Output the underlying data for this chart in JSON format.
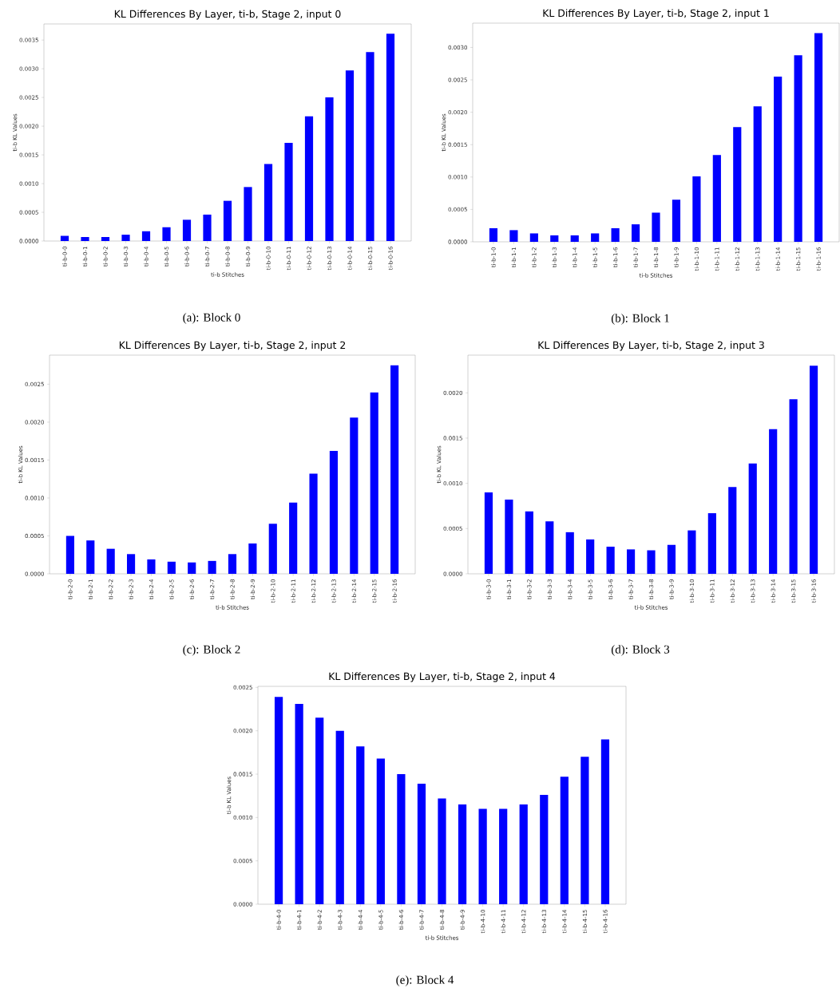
{
  "chart_data": [
    {
      "type": "bar",
      "title": "KL Differences By Layer, ti-b, Stage 2, input 0",
      "xlabel": "ti-b Stitches",
      "ylabel": "ti-b KL Values",
      "color": "#0000ff",
      "categories": [
        "ti-b-0-0",
        "ti-b-0-1",
        "ti-b-0-2",
        "ti-b-0-3",
        "ti-b-0-4",
        "ti-b-0-5",
        "ti-b-0-6",
        "ti-b-0-7",
        "ti-b-0-8",
        "ti-b-0-9",
        "ti-b-0-10",
        "ti-b-0-11",
        "ti-b-0-12",
        "ti-b-0-13",
        "ti-b-0-14",
        "ti-b-0-15",
        "ti-b-0-16"
      ],
      "values": [
        9e-05,
        7e-05,
        7e-05,
        0.00011,
        0.00017,
        0.00024,
        0.00037,
        0.00046,
        0.0007,
        0.00094,
        0.00134,
        0.00171,
        0.00217,
        0.0025,
        0.00297,
        0.00329,
        0.00361
      ],
      "ylim": [
        0,
        0.00378
      ],
      "yticks": [
        {
          "value": 0,
          "label": "0.0000"
        },
        {
          "value": 0.0005,
          "label": "0.0005"
        },
        {
          "value": 0.001,
          "label": "0.0010"
        },
        {
          "value": 0.0015,
          "label": "0.0015"
        },
        {
          "value": 0.002,
          "label": "0.0020"
        },
        {
          "value": 0.0025,
          "label": "0.0025"
        },
        {
          "value": 0.003,
          "label": "0.0030"
        },
        {
          "value": 0.0035,
          "label": "0.0035"
        }
      ],
      "annotations": [
        "(a): Block 0"
      ]
    },
    {
      "type": "bar",
      "title": "KL Differences By Layer, ti-b, Stage 2, input 1",
      "xlabel": "ti-b Stitches",
      "ylabel": "ti-b KL Values",
      "color": "#0000ff",
      "categories": [
        "ti-b-1-0",
        "ti-b-1-1",
        "ti-b-1-2",
        "ti-b-1-3",
        "ti-b-1-4",
        "ti-b-1-5",
        "ti-b-1-6",
        "ti-b-1-7",
        "ti-b-1-8",
        "ti-b-1-9",
        "ti-b-1-10",
        "ti-b-1-11",
        "ti-b-1-12",
        "ti-b-1-13",
        "ti-b-1-14",
        "ti-b-1-15",
        "ti-b-1-16"
      ],
      "values": [
        0.00021,
        0.00018,
        0.00013,
        0.0001,
        0.0001,
        0.00013,
        0.00021,
        0.00027,
        0.00045,
        0.00065,
        0.00101,
        0.00134,
        0.00177,
        0.00209,
        0.00255,
        0.00288,
        0.00322
      ],
      "ylim": [
        0,
        0.003375
      ],
      "yticks": [
        {
          "value": 0,
          "label": "0.0000"
        },
        {
          "value": 0.0005,
          "label": "0.0005"
        },
        {
          "value": 0.001,
          "label": "0.0010"
        },
        {
          "value": 0.0015,
          "label": "0.0015"
        },
        {
          "value": 0.002,
          "label": "0.0020"
        },
        {
          "value": 0.0025,
          "label": "0.0025"
        },
        {
          "value": 0.003,
          "label": "0.0030"
        }
      ],
      "annotations": [
        "(b): Block 1"
      ]
    },
    {
      "type": "bar",
      "title": "KL Differences By Layer, ti-b, Stage 2, input 2",
      "xlabel": "ti-b Stitches",
      "ylabel": "ti-b KL Values",
      "color": "#0000ff",
      "categories": [
        "ti-b-2-0",
        "ti-b-2-1",
        "ti-b-2-2",
        "ti-b-2-3",
        "ti-b-2-4",
        "ti-b-2-5",
        "ti-b-2-6",
        "ti-b-2-7",
        "ti-b-2-8",
        "ti-b-2-9",
        "ti-b-2-10",
        "ti-b-2-11",
        "ti-b-2-12",
        "ti-b-2-13",
        "ti-b-2-14",
        "ti-b-2-15",
        "ti-b-2-16"
      ],
      "values": [
        0.0005,
        0.00044,
        0.00033,
        0.00026,
        0.00019,
        0.00016,
        0.00015,
        0.00017,
        0.00026,
        0.0004,
        0.00066,
        0.00094,
        0.00132,
        0.00162,
        0.00206,
        0.00239,
        0.00275
      ],
      "ylim": [
        0,
        0.002883
      ],
      "yticks": [
        {
          "value": 0,
          "label": "0.0000"
        },
        {
          "value": 0.0005,
          "label": "0.0005"
        },
        {
          "value": 0.001,
          "label": "0.0010"
        },
        {
          "value": 0.0015,
          "label": "0.0015"
        },
        {
          "value": 0.002,
          "label": "0.0020"
        },
        {
          "value": 0.0025,
          "label": "0.0025"
        }
      ],
      "annotations": [
        "(c): Block 2"
      ]
    },
    {
      "type": "bar",
      "title": "KL Differences By Layer, ti-b, Stage 2, input 3",
      "xlabel": "ti-b Stitches",
      "ylabel": "ti-b KL Values",
      "color": "#0000ff",
      "categories": [
        "ti-b-3-0",
        "ti-b-3-1",
        "ti-b-3-2",
        "ti-b-3-3",
        "ti-b-3-4",
        "ti-b-3-5",
        "ti-b-3-6",
        "ti-b-3-7",
        "ti-b-3-8",
        "ti-b-3-9",
        "ti-b-3-10",
        "ti-b-3-11",
        "ti-b-3-12",
        "ti-b-3-13",
        "ti-b-3-14",
        "ti-b-3-15",
        "ti-b-3-16"
      ],
      "values": [
        0.0009,
        0.00082,
        0.00069,
        0.00058,
        0.00046,
        0.00038,
        0.0003,
        0.00027,
        0.00026,
        0.00032,
        0.00048,
        0.00067,
        0.00096,
        0.00122,
        0.0016,
        0.00193,
        0.0023
      ],
      "ylim": [
        0,
        0.002417
      ],
      "yticks": [
        {
          "value": 0,
          "label": "0.0000"
        },
        {
          "value": 0.0005,
          "label": "0.0005"
        },
        {
          "value": 0.001,
          "label": "0.0010"
        },
        {
          "value": 0.0015,
          "label": "0.0015"
        },
        {
          "value": 0.002,
          "label": "0.0020"
        }
      ],
      "annotations": [
        "(d): Block 3"
      ]
    },
    {
      "type": "bar",
      "title": "KL Differences By Layer, ti-b, Stage 2, input 4",
      "xlabel": "ti-b Stitches",
      "ylabel": "ti-b KL Values",
      "color": "#0000ff",
      "categories": [
        "ti-b-4-0",
        "ti-b-4-1",
        "ti-b-4-2",
        "ti-b-4-3",
        "ti-b-4-4",
        "ti-b-4-5",
        "ti-b-4-6",
        "ti-b-4-7",
        "ti-b-4-8",
        "ti-b-4-9",
        "ti-b-4-10",
        "ti-b-4-11",
        "ti-b-4-12",
        "ti-b-4-13",
        "ti-b-4-14",
        "ti-b-4-15",
        "ti-b-4-16"
      ],
      "values": [
        0.00239,
        0.00231,
        0.00215,
        0.002,
        0.00182,
        0.00168,
        0.0015,
        0.00139,
        0.00122,
        0.00115,
        0.0011,
        0.0011,
        0.00115,
        0.00126,
        0.00147,
        0.0017,
        0.0019
      ],
      "ylim": [
        0,
        0.002512
      ],
      "yticks": [
        {
          "value": 0,
          "label": "0.0000"
        },
        {
          "value": 0.0005,
          "label": "0.0005"
        },
        {
          "value": 0.001,
          "label": "0.0010"
        },
        {
          "value": 0.0015,
          "label": "0.0015"
        },
        {
          "value": 0.002,
          "label": "0.0020"
        },
        {
          "value": 0.0025,
          "label": "0.0025"
        }
      ],
      "annotations": [
        "(e): Block 4"
      ]
    }
  ]
}
